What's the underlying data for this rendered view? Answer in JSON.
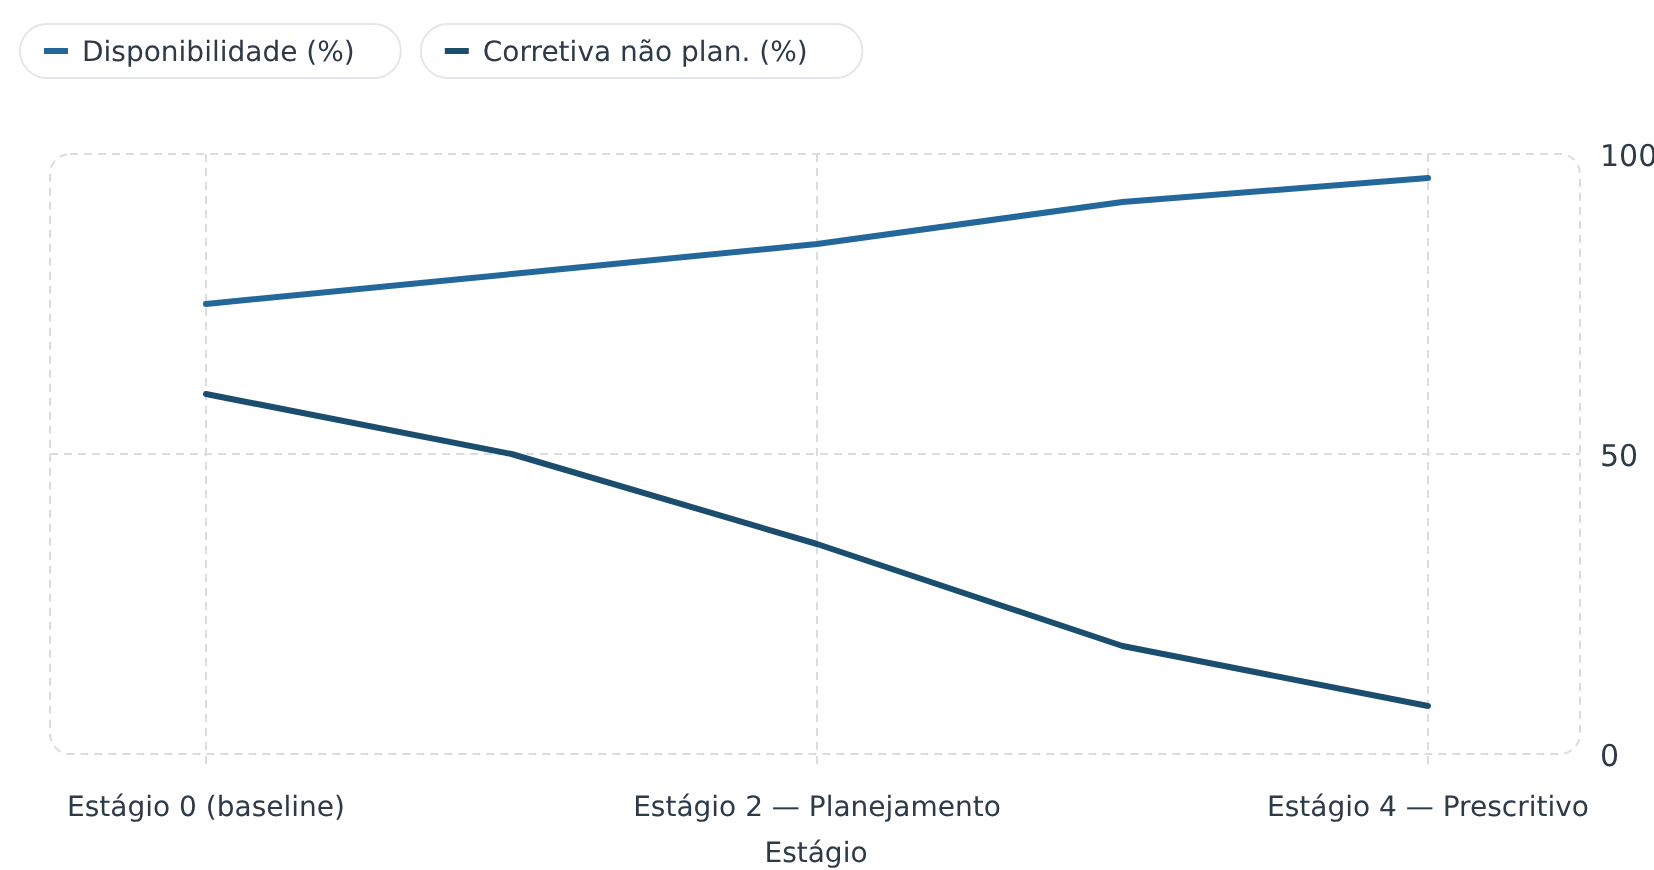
{
  "chart_data": {
    "type": "line",
    "xlabel": "Estágio",
    "categories": [
      "Estágio 0 (baseline)",
      null,
      "Estágio 2 — Planejamento",
      null,
      "Estágio 4 — Prescritivo"
    ],
    "series": [
      {
        "name": "Disponibilidade (%)",
        "color": "#24679a",
        "values": [
          75,
          80,
          85,
          92,
          96
        ]
      },
      {
        "name": "Corretiva não plan. (%)",
        "color": "#1b4d6e",
        "values": [
          60,
          50,
          35,
          18,
          8
        ]
      }
    ],
    "ylim": [
      0,
      100
    ],
    "yticks": [
      0,
      50,
      100
    ],
    "grid": true,
    "legend": "top left",
    "marker": "none",
    "line_style": "solid"
  }
}
